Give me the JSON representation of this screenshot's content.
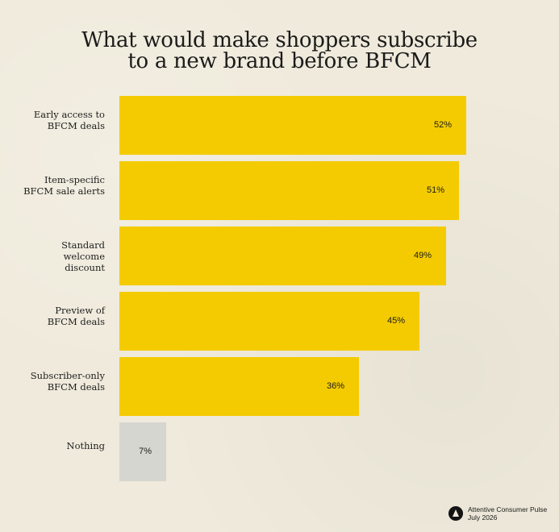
{
  "chart_data": {
    "type": "bar",
    "orientation": "horizontal",
    "title_lines": [
      "What would make shoppers subscribe",
      "to a new brand before BFCM"
    ],
    "categories": [
      [
        "Early access to",
        "BFCM deals"
      ],
      [
        "Item-specific",
        "BFCM sale alerts"
      ],
      [
        "Standard",
        "welcome",
        "discount"
      ],
      [
        "Preview of",
        "BFCM deals"
      ],
      [
        "Subscriber-only",
        "BFCM deals"
      ],
      [
        "Nothing"
      ]
    ],
    "values": [
      52,
      51,
      49,
      45,
      36,
      7
    ],
    "value_labels": [
      "52%",
      "51%",
      "49%",
      "45%",
      "36%",
      "7%"
    ],
    "xlim": [
      0,
      100
    ],
    "colors": {
      "highlight": "#f4cb00",
      "muted": "#d6d6d0",
      "background": "#efeadb"
    },
    "legend": "none",
    "grid": false
  },
  "footer": {
    "logo_icon": "attentive-logo-icon",
    "line1": "Attentive Consumer Pulse",
    "line2": "July 2026"
  }
}
